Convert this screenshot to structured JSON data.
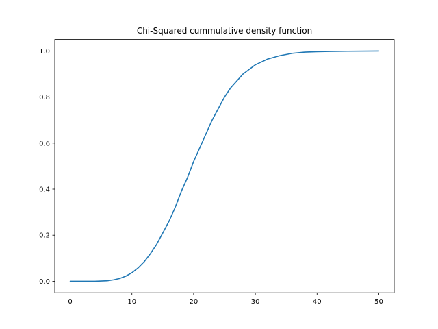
{
  "chart_data": {
    "type": "line",
    "title": "Chi-Squared cummulative density function",
    "xlabel": "",
    "ylabel": "",
    "xlim": [
      -2.5,
      52.5
    ],
    "ylim": [
      -0.05,
      1.05
    ],
    "xticks": [
      0,
      10,
      20,
      30,
      40,
      50
    ],
    "xtick_labels": [
      "0",
      "10",
      "20",
      "30",
      "40",
      "50"
    ],
    "yticks": [
      0.0,
      0.2,
      0.4,
      0.6,
      0.8,
      1.0
    ],
    "ytick_labels": [
      "0.0",
      "0.2",
      "0.4",
      "0.6",
      "0.8",
      "1.0"
    ],
    "grid": false,
    "legend": "none",
    "series": [
      {
        "color": "#1f77b4",
        "x": [
          0,
          2,
          4,
          5,
          6,
          7,
          8,
          9,
          10,
          11,
          12,
          13,
          14,
          15,
          16,
          17,
          18,
          19,
          20,
          21,
          22,
          23,
          24,
          25,
          26,
          27,
          28,
          29,
          30,
          32,
          34,
          36,
          38,
          40,
          42,
          45,
          50
        ],
        "y": [
          0.0,
          0.0,
          0.0,
          0.001,
          0.002,
          0.006,
          0.012,
          0.022,
          0.037,
          0.058,
          0.085,
          0.12,
          0.16,
          0.21,
          0.26,
          0.32,
          0.39,
          0.45,
          0.52,
          0.58,
          0.64,
          0.7,
          0.75,
          0.8,
          0.84,
          0.87,
          0.9,
          0.92,
          0.94,
          0.965,
          0.98,
          0.99,
          0.995,
          0.997,
          0.998,
          0.999,
          1.0
        ]
      }
    ]
  }
}
